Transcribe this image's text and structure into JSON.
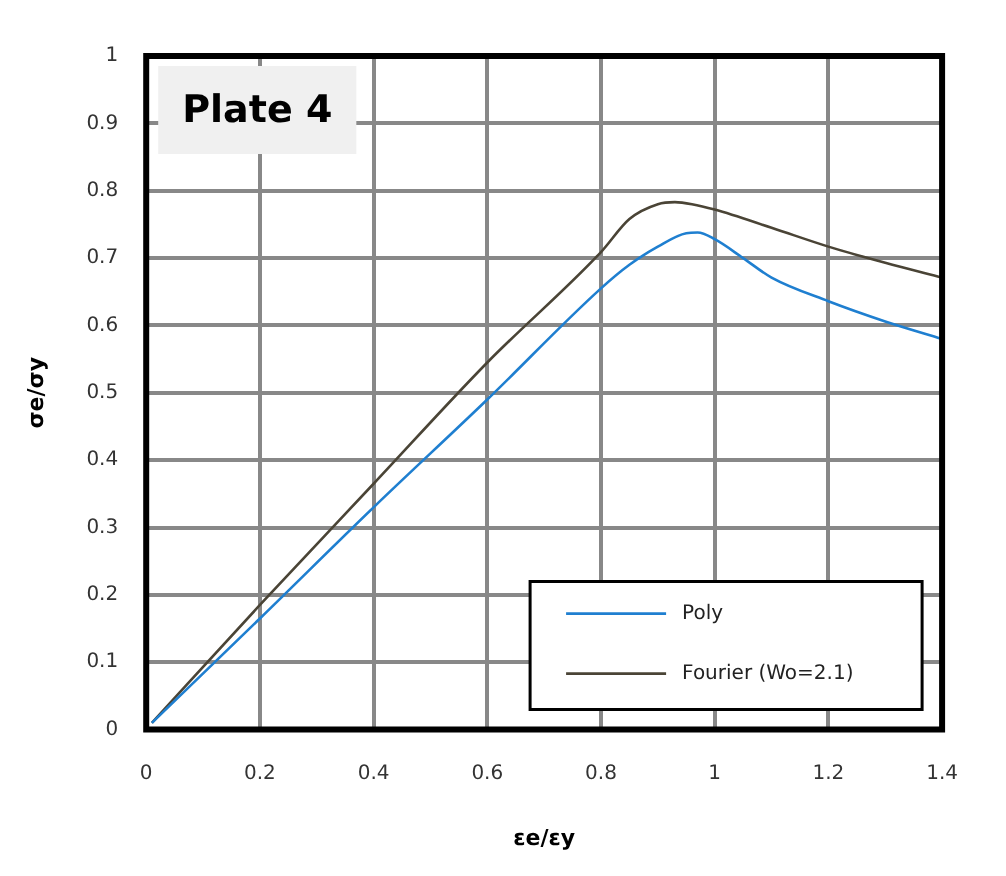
{
  "chart_data": {
    "type": "line",
    "title": "Plate 4",
    "xlabel": "εe/εy",
    "ylabel": "σe/σy",
    "xlim": [
      0,
      1.4
    ],
    "xticks": [
      0,
      0.2,
      0.4,
      0.6,
      0.8,
      1,
      1.2,
      1.4
    ],
    "ylim": [
      0,
      1
    ],
    "yticks": [
      0,
      0.1,
      0.2,
      0.3,
      0.4,
      0.5,
      0.6,
      0.7,
      0.8,
      0.9,
      1
    ],
    "grid": true,
    "legend": "bottom right",
    "marker": "none",
    "line_style": "solid",
    "series": [
      {
        "name": "Poly",
        "color": "#1f7fd0",
        "x": [
          0.01,
          0.2,
          0.4,
          0.6,
          0.8,
          0.85,
          0.9,
          0.95,
          0.97,
          1.0,
          1.05,
          1.1,
          1.2,
          1.3,
          1.4
        ],
        "values": [
          0.01,
          0.165,
          0.33,
          0.49,
          0.655,
          0.69,
          0.717,
          0.737,
          0.738,
          0.728,
          0.7,
          0.671,
          0.636,
          0.606,
          0.58
        ]
      },
      {
        "name": "Fourier (Wo=2.1)",
        "color": "#4a4436",
        "x": [
          0.01,
          0.2,
          0.4,
          0.6,
          0.8,
          0.85,
          0.9,
          0.93,
          0.96,
          1.0,
          1.1,
          1.2,
          1.3,
          1.4
        ],
        "values": [
          0.01,
          0.185,
          0.365,
          0.545,
          0.709,
          0.758,
          0.78,
          0.783,
          0.78,
          0.772,
          0.745,
          0.717,
          0.693,
          0.671
        ]
      }
    ]
  }
}
